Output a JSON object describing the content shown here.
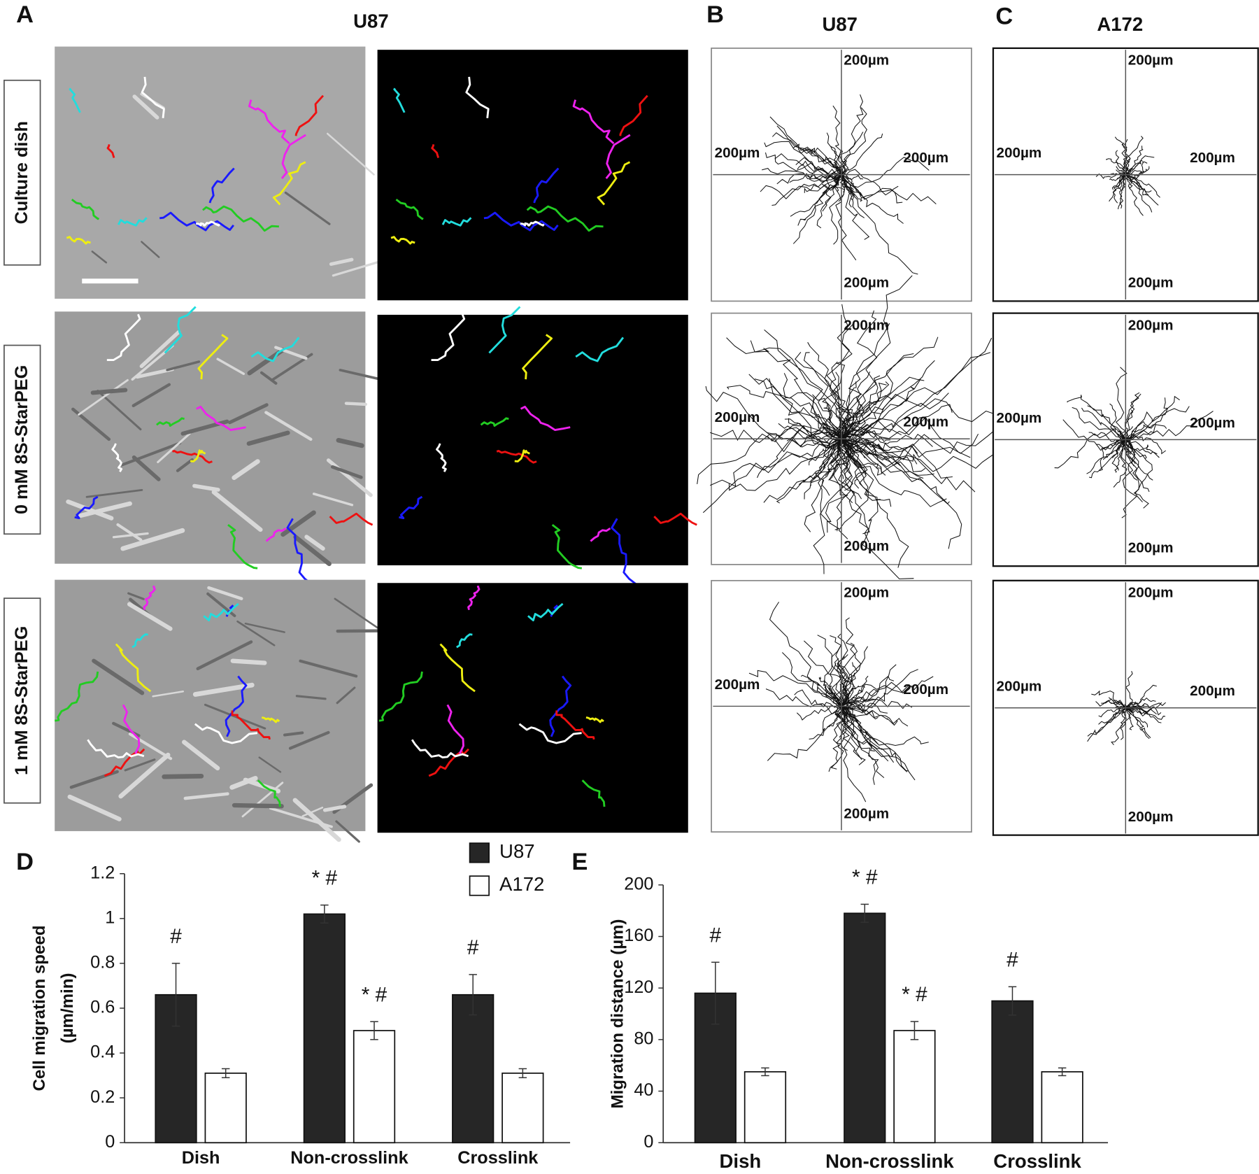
{
  "panels": {
    "A": {
      "label": "A",
      "title": "U87",
      "rows": [
        "Culture dish",
        "0 mM 8S-StarPEG",
        "1 mM 8S-StarPEG"
      ]
    },
    "B": {
      "label": "B",
      "title": "U87",
      "axis_label": "200µm"
    },
    "C": {
      "label": "C",
      "title": "A172",
      "axis_label": "200µm"
    }
  },
  "chart_data": [
    {
      "type": "bar",
      "panel_label": "D",
      "ylabel": [
        "Cell migration speed",
        "(µm/min)"
      ],
      "categories": [
        "Dish",
        "Non-crosslink",
        "Crosslink"
      ],
      "series": [
        {
          "name": "U87",
          "color": "#262626",
          "values": [
            0.66,
            1.02,
            0.66
          ],
          "errors": [
            0.14,
            0.04,
            0.09
          ],
          "annotations": [
            "#",
            "* #",
            "#"
          ]
        },
        {
          "name": "A172",
          "color": "#ffffff",
          "values": [
            0.31,
            0.5,
            0.31
          ],
          "errors": [
            0.02,
            0.04,
            0.02
          ],
          "annotations": [
            null,
            "* #",
            null
          ]
        }
      ],
      "ylim": [
        0,
        1.2
      ],
      "yticks": [
        0,
        0.2,
        0.4,
        0.6,
        0.8,
        1,
        1.2
      ],
      "legend": "top-right"
    },
    {
      "type": "bar",
      "panel_label": "E",
      "ylabel": [
        "Migration distance (µm)"
      ],
      "categories": [
        "Dish",
        "Non-crosslink",
        "Crosslink"
      ],
      "series": [
        {
          "name": "U87",
          "color": "#262626",
          "values": [
            116,
            178,
            110
          ],
          "errors": [
            24,
            7,
            11
          ],
          "annotations": [
            "#",
            "* #",
            "#"
          ]
        },
        {
          "name": "A172",
          "color": "#ffffff",
          "values": [
            55,
            87,
            55
          ],
          "errors": [
            3,
            7,
            3
          ],
          "annotations": [
            null,
            "* #",
            null
          ]
        }
      ],
      "ylim": [
        0,
        200
      ],
      "yticks": [
        0,
        40,
        80,
        120,
        160,
        200
      ]
    }
  ]
}
